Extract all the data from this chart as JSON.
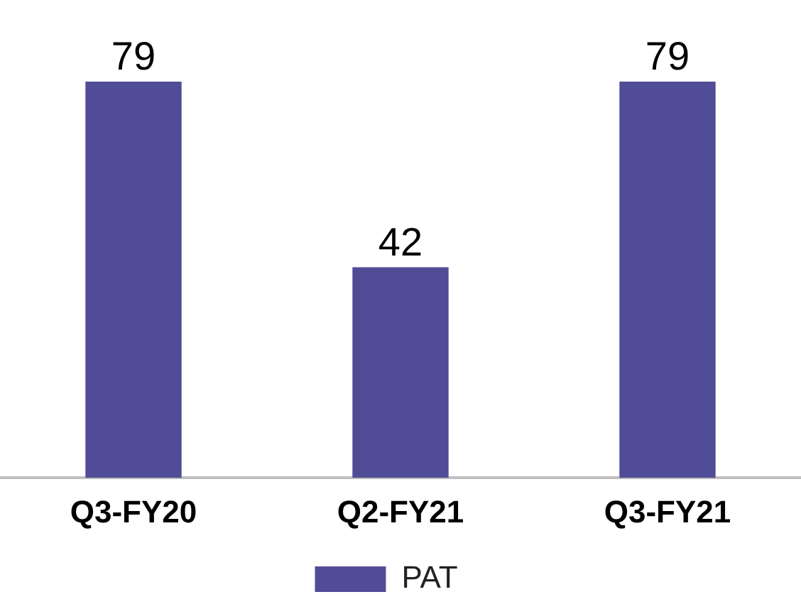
{
  "chart_data": {
    "type": "bar",
    "categories": [
      "Q3-FY20",
      "Q2-FY21",
      "Q3-FY21"
    ],
    "series": [
      {
        "name": "PAT",
        "color": "#514c96",
        "values": [
          79,
          42,
          79
        ]
      }
    ],
    "data_labels": true,
    "legend": "bottom",
    "grid": false
  }
}
